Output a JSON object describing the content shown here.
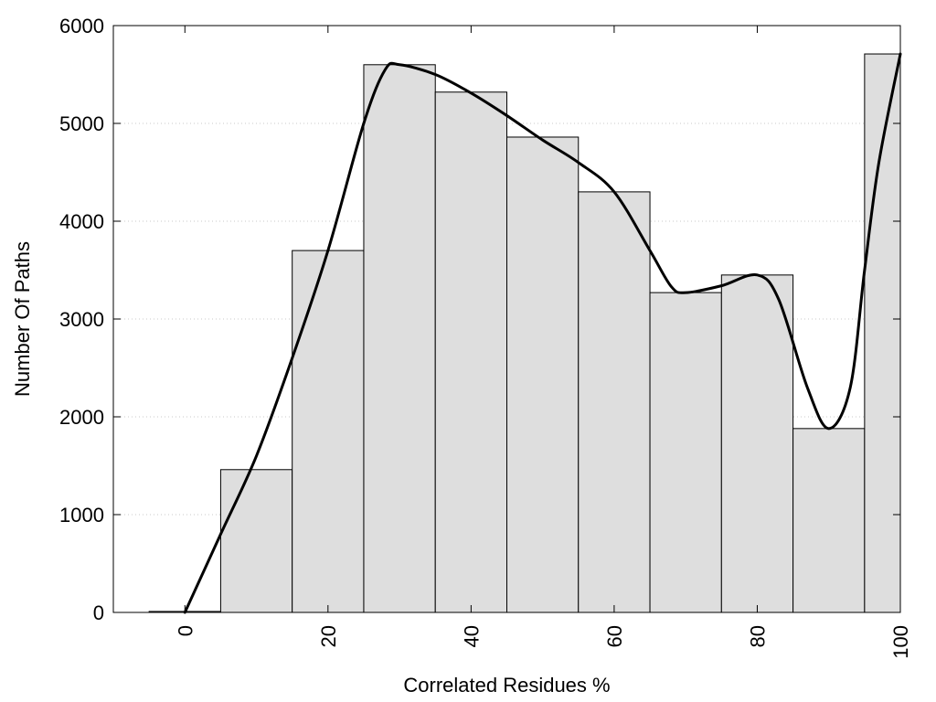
{
  "chart_data": {
    "type": "bar",
    "title": "",
    "xlabel": "Correlated Residues %",
    "ylabel": "Number Of Paths",
    "x": [
      0,
      10,
      20,
      30,
      40,
      50,
      60,
      70,
      80,
      90,
      100
    ],
    "values": [
      10,
      1460,
      3700,
      5600,
      5320,
      4860,
      4300,
      3270,
      3450,
      1880,
      5710
    ],
    "bin_width": 10,
    "xlim": [
      -10,
      100
    ],
    "ylim": [
      0,
      6000
    ],
    "xticks": [
      0,
      20,
      40,
      60,
      80,
      100
    ],
    "xtick_labels": [
      "0",
      "20",
      "40",
      "60",
      "80",
      "100"
    ],
    "yticks": [
      0,
      1000,
      2000,
      3000,
      4000,
      5000,
      6000
    ],
    "ytick_labels": [
      "0",
      "1000",
      "2000",
      "3000",
      "4000",
      "5000",
      "6000"
    ],
    "grid": "horizontal dotted",
    "bar_color": "#dedede",
    "bar_edge_color": "#000000",
    "series": [
      {
        "type": "bar",
        "values": [
          10,
          1460,
          3700,
          5600,
          5320,
          4860,
          4300,
          3270,
          3450,
          1880,
          5710
        ]
      },
      {
        "type": "line",
        "x": [
          0,
          5,
          10,
          15,
          20,
          25,
          28,
          30,
          35,
          40,
          45,
          50,
          55,
          60,
          65,
          68,
          70,
          75,
          80,
          83,
          87,
          90,
          93,
          95,
          97,
          100
        ],
        "y": [
          0,
          800,
          1600,
          2600,
          3700,
          5000,
          5550,
          5600,
          5500,
          5310,
          5080,
          4830,
          4600,
          4300,
          3700,
          3330,
          3270,
          3340,
          3450,
          3200,
          2300,
          1880,
          2300,
          3500,
          4600,
          5710
        ]
      }
    ],
    "line_color": "#000000"
  }
}
